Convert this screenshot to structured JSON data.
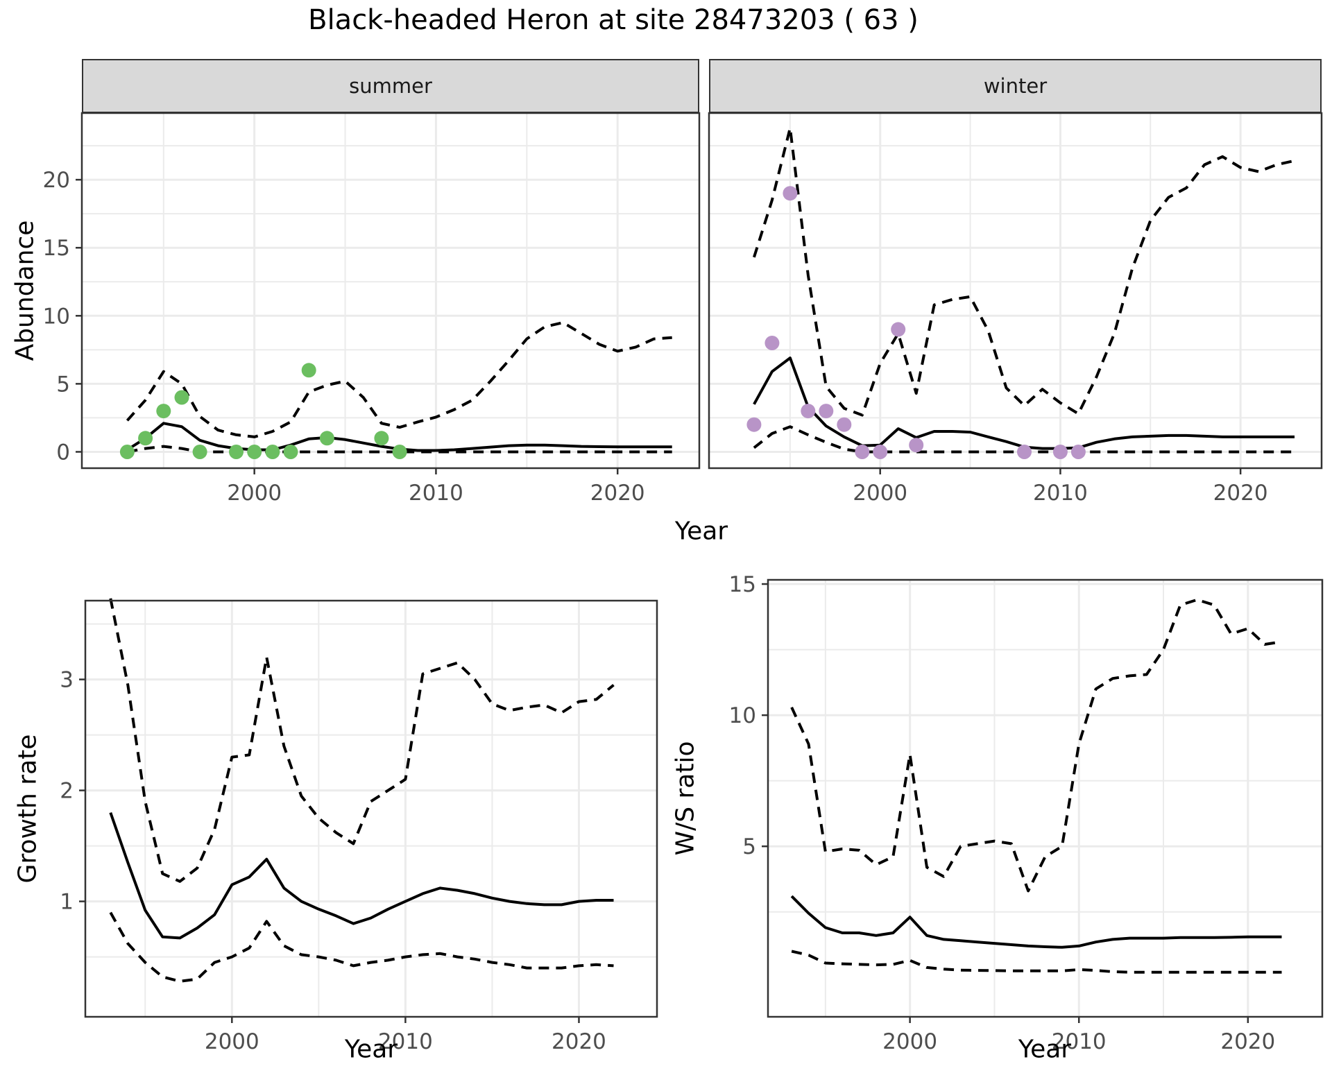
{
  "title": "Black-headed Heron at site 28473203 ( 63 )",
  "facets": {
    "summer": "summer",
    "winter": "winter"
  },
  "axes": {
    "abundance_label": "Abundance",
    "growth_label": "Growth rate",
    "ws_label": "W/S ratio",
    "top_xlabel": "Year",
    "growth_xlabel": "Year",
    "ws_xlabel": "Year"
  },
  "colors": {
    "summer_point": "#6bbe60",
    "winter_point": "#b894c7",
    "line": "#000000",
    "grid": "#ebebeb",
    "panel_border": "#333333",
    "strip_bg": "#d9d9d9",
    "tick_text": "#4d4d4d"
  },
  "chart_data": [
    {
      "id": "abundance-summer",
      "type": "line",
      "facet": "summer",
      "ylabel": "Abundance",
      "xlabel": "Year",
      "x": [
        1993,
        1994,
        1995,
        1996,
        1997,
        1998,
        1999,
        2000,
        2001,
        2002,
        2003,
        2004,
        2005,
        2006,
        2007,
        2008,
        2009,
        2010,
        2011,
        2012,
        2013,
        2014,
        2015,
        2016,
        2017,
        2018,
        2019,
        2020,
        2021,
        2022,
        2023
      ],
      "series": [
        {
          "name": "estimate",
          "style": "solid",
          "values": [
            0.15,
            1.0,
            2.1,
            1.85,
            0.85,
            0.45,
            0.25,
            0.15,
            0.15,
            0.5,
            0.95,
            1.05,
            0.9,
            0.65,
            0.4,
            0.2,
            0.1,
            0.1,
            0.15,
            0.25,
            0.35,
            0.45,
            0.5,
            0.5,
            0.45,
            0.4,
            0.38,
            0.37,
            0.37,
            0.37,
            0.37
          ]
        },
        {
          "name": "upper_ci",
          "style": "dashed",
          "values": [
            2.3,
            3.8,
            5.9,
            5.0,
            2.6,
            1.6,
            1.25,
            1.1,
            1.5,
            2.2,
            4.4,
            4.9,
            5.2,
            4.0,
            2.1,
            1.8,
            2.2,
            2.55,
            3.1,
            3.8,
            5.2,
            6.7,
            8.3,
            9.2,
            9.5,
            8.7,
            7.9,
            7.4,
            7.7,
            8.3,
            8.4
          ]
        },
        {
          "name": "lower_ci",
          "style": "dashed",
          "values": [
            0,
            0.25,
            0.4,
            0.25,
            0,
            0,
            0,
            0,
            0,
            0,
            0,
            0,
            0,
            0,
            0,
            0,
            0,
            0,
            0,
            0,
            0,
            0,
            0,
            0,
            0,
            0,
            0,
            0,
            0,
            0,
            0
          ]
        }
      ],
      "points": {
        "name": "observed-count",
        "color": "#6bbe60",
        "x": [
          1993,
          1994,
          1995,
          1996,
          1997,
          1999,
          2000,
          2001,
          2002,
          2003,
          2004,
          2007,
          2008
        ],
        "y": [
          0,
          1,
          3,
          4,
          0,
          0,
          0,
          0,
          0,
          6,
          1,
          1,
          0
        ]
      },
      "xlim": [
        1990.5,
        2024.5
      ],
      "ylim": [
        -1.2,
        24.9
      ],
      "xticks": [
        2000,
        2010,
        2020
      ],
      "yticks": [
        0,
        5,
        10,
        15,
        20
      ],
      "grid": true,
      "legend": "none"
    },
    {
      "id": "abundance-winter",
      "type": "line",
      "facet": "winter",
      "ylabel": "Abundance",
      "xlabel": "Year",
      "x": [
        1993,
        1994,
        1995,
        1996,
        1997,
        1998,
        1999,
        2000,
        2001,
        2002,
        2003,
        2004,
        2005,
        2006,
        2007,
        2008,
        2009,
        2010,
        2011,
        2012,
        2013,
        2014,
        2015,
        2016,
        2017,
        2018,
        2019,
        2020,
        2021,
        2022,
        2023
      ],
      "series": [
        {
          "name": "estimate",
          "style": "solid",
          "values": [
            3.5,
            5.9,
            6.9,
            3.3,
            1.9,
            1.1,
            0.45,
            0.5,
            1.7,
            1.05,
            1.5,
            1.5,
            1.45,
            1.1,
            0.75,
            0.35,
            0.25,
            0.25,
            0.3,
            0.7,
            0.95,
            1.1,
            1.15,
            1.2,
            1.2,
            1.15,
            1.1,
            1.1,
            1.1,
            1.1,
            1.1
          ]
        },
        {
          "name": "upper_ci",
          "style": "dashed",
          "values": [
            14.3,
            18.5,
            23.8,
            13.0,
            4.8,
            3.2,
            2.7,
            6.5,
            8.7,
            4.3,
            10.8,
            11.2,
            11.4,
            8.9,
            4.7,
            3.4,
            4.6,
            3.6,
            2.8,
            5.5,
            8.7,
            13.5,
            17.0,
            18.7,
            19.4,
            21.1,
            21.7,
            20.9,
            20.6,
            21.1,
            21.4
          ]
        },
        {
          "name": "lower_ci",
          "style": "dashed",
          "values": [
            0.3,
            1.35,
            1.85,
            1.25,
            0.7,
            0.2,
            0,
            0,
            0,
            0,
            0,
            0,
            0,
            0,
            0,
            0,
            0,
            0,
            0,
            0,
            0,
            0,
            0,
            0,
            0,
            0,
            0,
            0,
            0,
            0,
            0
          ]
        }
      ],
      "points": {
        "name": "observed-count",
        "color": "#b894c7",
        "x": [
          1993,
          1994,
          1995,
          1996,
          1997,
          1998,
          1999,
          2000,
          2001,
          2002,
          2008,
          2010,
          2011
        ],
        "y": [
          2,
          8,
          19,
          3,
          3,
          2,
          0,
          0,
          9,
          0.5,
          0,
          0,
          0
        ]
      },
      "xlim": [
        1990.5,
        2024.5
      ],
      "ylim": [
        -1.2,
        24.9
      ],
      "xticks": [
        2000,
        2010,
        2020
      ],
      "yticks": [
        0,
        5,
        10,
        15,
        20
      ],
      "grid": true,
      "legend": "none"
    },
    {
      "id": "growth-rate",
      "type": "line",
      "ylabel": "Growth rate",
      "xlabel": "Year",
      "x": [
        1993,
        1994,
        1995,
        1996,
        1997,
        1998,
        1999,
        2000,
        2001,
        2002,
        2003,
        2004,
        2005,
        2006,
        2007,
        2008,
        2009,
        2010,
        2011,
        2012,
        2013,
        2014,
        2015,
        2016,
        2017,
        2018,
        2019,
        2020,
        2021,
        2022
      ],
      "series": [
        {
          "name": "estimate",
          "style": "solid",
          "values": [
            1.8,
            1.35,
            0.92,
            0.68,
            0.67,
            0.76,
            0.88,
            1.15,
            1.22,
            1.38,
            1.12,
            1.0,
            0.93,
            0.87,
            0.8,
            0.85,
            0.93,
            1.0,
            1.07,
            1.12,
            1.1,
            1.07,
            1.03,
            1.0,
            0.98,
            0.97,
            0.97,
            1.0,
            1.01,
            1.01
          ]
        },
        {
          "name": "upper_ci",
          "style": "dashed",
          "values": [
            3.73,
            2.95,
            1.9,
            1.25,
            1.18,
            1.3,
            1.65,
            2.3,
            2.32,
            3.2,
            2.4,
            1.95,
            1.75,
            1.62,
            1.52,
            1.9,
            2.0,
            2.1,
            3.05,
            3.1,
            3.15,
            3.0,
            2.78,
            2.72,
            2.75,
            2.77,
            2.7,
            2.8,
            2.82,
            2.95
          ]
        },
        {
          "name": "lower_ci",
          "style": "dashed",
          "values": [
            0.9,
            0.62,
            0.45,
            0.32,
            0.28,
            0.3,
            0.45,
            0.5,
            0.58,
            0.82,
            0.6,
            0.52,
            0.5,
            0.47,
            0.42,
            0.45,
            0.47,
            0.5,
            0.52,
            0.53,
            0.5,
            0.48,
            0.45,
            0.43,
            0.4,
            0.4,
            0.4,
            0.42,
            0.43,
            0.42
          ]
        }
      ],
      "xlim": [
        1991.55,
        2024.5
      ],
      "ylim": [
        -0.04,
        3.71
      ],
      "xticks": [
        2000,
        2010,
        2020
      ],
      "yticks": [
        1,
        2,
        3
      ],
      "grid": true,
      "legend": "none"
    },
    {
      "id": "ws-ratio",
      "type": "line",
      "ylabel": "W/S ratio",
      "xlabel": "Year",
      "x": [
        1993,
        1994,
        1995,
        1996,
        1997,
        1998,
        1999,
        2000,
        2001,
        2002,
        2003,
        2004,
        2005,
        2006,
        2007,
        2008,
        2009,
        2010,
        2011,
        2012,
        2013,
        2014,
        2015,
        2016,
        2017,
        2018,
        2019,
        2020,
        2021,
        2022
      ],
      "series": [
        {
          "name": "estimate",
          "style": "solid",
          "values": [
            3.1,
            2.45,
            1.9,
            1.7,
            1.7,
            1.6,
            1.7,
            2.3,
            1.6,
            1.45,
            1.4,
            1.35,
            1.3,
            1.25,
            1.2,
            1.17,
            1.15,
            1.2,
            1.35,
            1.45,
            1.5,
            1.5,
            1.5,
            1.52,
            1.52,
            1.52,
            1.53,
            1.55,
            1.55,
            1.55
          ]
        },
        {
          "name": "upper_ci",
          "style": "dashed",
          "values": [
            10.3,
            8.9,
            4.8,
            4.9,
            4.85,
            4.3,
            4.6,
            8.5,
            4.2,
            3.85,
            5.0,
            5.1,
            5.2,
            5.1,
            3.3,
            4.6,
            5.0,
            8.9,
            11.0,
            11.4,
            11.5,
            11.55,
            12.5,
            14.2,
            14.4,
            14.2,
            13.1,
            13.3,
            12.7,
            12.8
          ]
        },
        {
          "name": "lower_ci",
          "style": "dashed",
          "values": [
            1.0,
            0.85,
            0.55,
            0.52,
            0.5,
            0.48,
            0.5,
            0.65,
            0.38,
            0.32,
            0.28,
            0.27,
            0.26,
            0.25,
            0.25,
            0.25,
            0.25,
            0.3,
            0.27,
            0.22,
            0.2,
            0.2,
            0.2,
            0.2,
            0.2,
            0.2,
            0.2,
            0.2,
            0.2,
            0.2
          ]
        }
      ],
      "xlim": [
        1991.6,
        2024.4
      ],
      "ylim": [
        -1.5,
        15.16
      ],
      "xticks": [
        2000,
        2010,
        2020
      ],
      "yticks": [
        5,
        10,
        15
      ],
      "grid": true,
      "legend": "none"
    }
  ]
}
